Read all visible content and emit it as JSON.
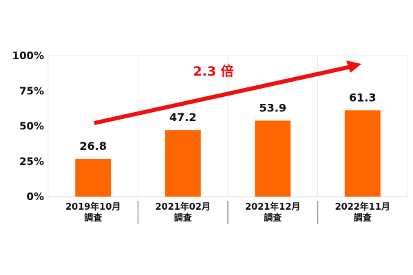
{
  "chart_data": {
    "type": "bar",
    "title": "",
    "xlabel": "",
    "ylabel": "",
    "ylim": [
      0,
      100
    ],
    "yticks": [
      "0%",
      "25%",
      "50%",
      "75%",
      "100%"
    ],
    "ytick_values": [
      0,
      25,
      50,
      75,
      100
    ],
    "categories": [
      [
        "2019年10月",
        "調査"
      ],
      [
        "2021年02月",
        "調査"
      ],
      [
        "2021年12月",
        "調査"
      ],
      [
        "2022年11月",
        "調査"
      ]
    ],
    "values": [
      26.8,
      47.2,
      53.9,
      61.3
    ],
    "value_labels": [
      "26.8",
      "47.2",
      "53.9",
      "61.3"
    ],
    "bar_color": "#ff6600",
    "grid": "vertical category separators",
    "annotation": {
      "text": "2.3 倍",
      "color": "#ee1111",
      "arrow": "rising from first to last category"
    }
  }
}
